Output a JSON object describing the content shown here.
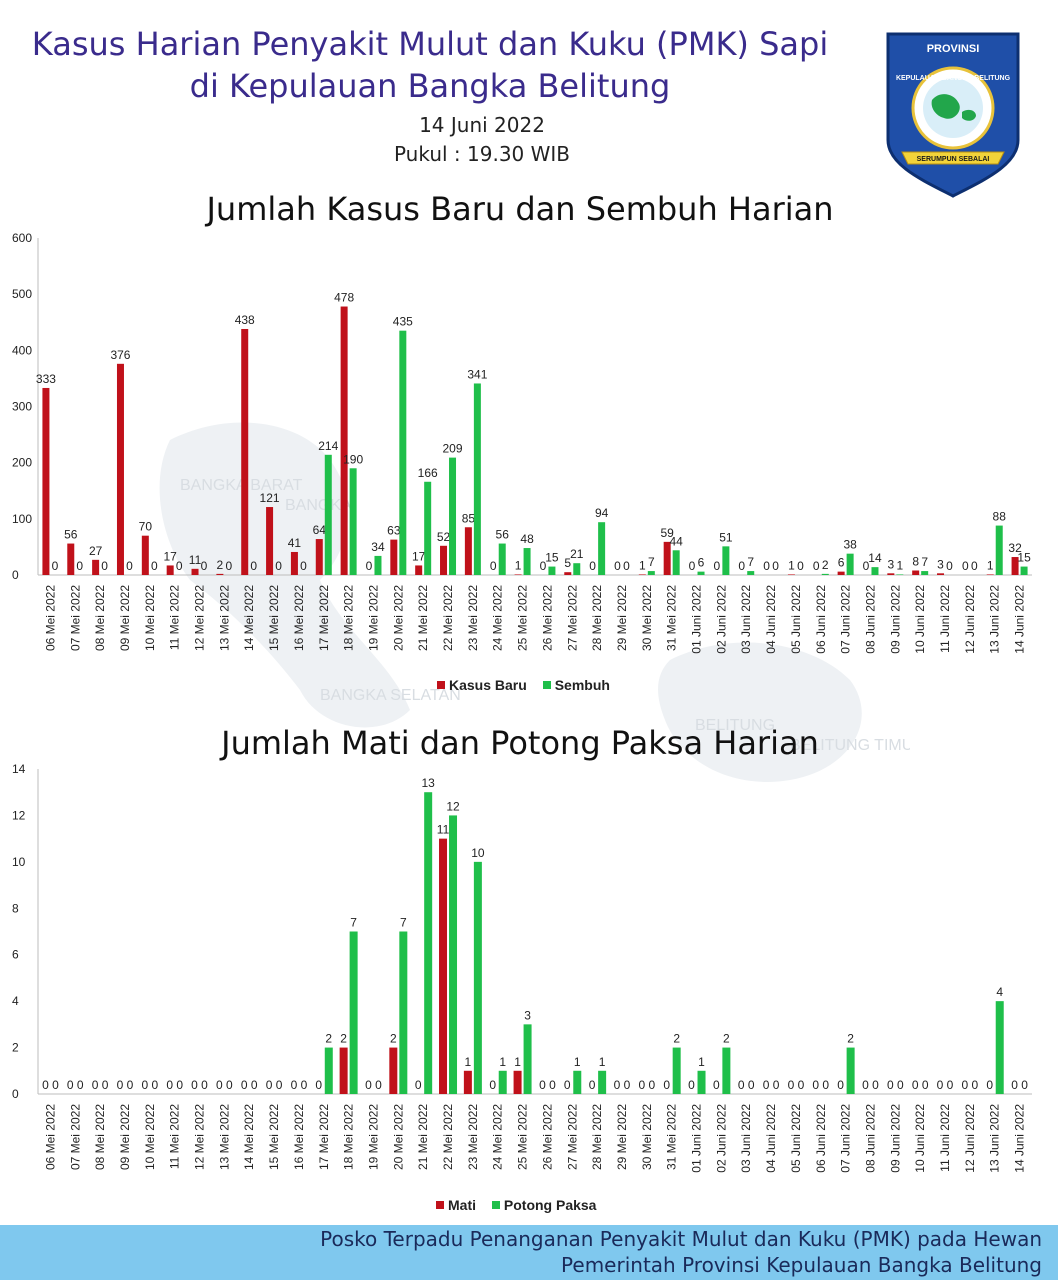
{
  "header": {
    "title_line1": "Kasus Harian Penyakit Mulut dan Kuku (PMK) Sapi",
    "title_line2": "di Kepulauan Bangka Belitung",
    "date": "14 Juni 2022",
    "time": "Pukul : 19.30 WIB"
  },
  "logo": {
    "top_text": "PROVINSI",
    "arc_text": "KEPULAUAN BANGKA BELITUNG",
    "ribbon_text": "SERUMPUN SEBALAI"
  },
  "background_map_labels": [
    "BANGKA BARAT",
    "BANGKA",
    "BANGKA SELATAN",
    "BELITUNG",
    "BELITUNG TIMUR"
  ],
  "chart_data": [
    {
      "type": "bar",
      "title": "Jumlah Kasus Baru dan Sembuh Harian",
      "xlabel": "",
      "ylabel": "",
      "ylim": [
        0,
        600
      ],
      "yticks": [
        0,
        100,
        200,
        300,
        400,
        500,
        600
      ],
      "legend_position": "bottom",
      "categories": [
        "06 Mei 2022",
        "07 Mei 2022",
        "08 Mei 2022",
        "09 Mei 2022",
        "10 Mei 2022",
        "11 Mei 2022",
        "12 Mei 2022",
        "13 Mei 2022",
        "14 Mei 2022",
        "15 Mei 2022",
        "16 Mei 2022",
        "17 Mei 2022",
        "18 Mei 2022",
        "19 Mei 2022",
        "20 Mei 2022",
        "21 Mei 2022",
        "22 Mei 2022",
        "23 Mei 2022",
        "24 Mei 2022",
        "25 Mei 2022",
        "26 Mei 2022",
        "27 Mei 2022",
        "28 Mei 2022",
        "29 Mei 2022",
        "30 Mei 2022",
        "31 Mei 2022",
        "01 Juni 2022",
        "02 Juni 2022",
        "03 Juni 2022",
        "04 Juni 2022",
        "05 Juni 2022",
        "06 Juni 2022",
        "07 Juni 2022",
        "08 Juni 2022",
        "09 Juni 2022",
        "10 Juni 2022",
        "11 Juni 2022",
        "12 Juni 2022",
        "13 Juni 2022",
        "14 Juni 2022"
      ],
      "series": [
        {
          "name": "Kasus Baru",
          "color": "#c0111a",
          "values": [
            333,
            56,
            27,
            376,
            70,
            17,
            11,
            2,
            438,
            121,
            41,
            64,
            478,
            0,
            63,
            17,
            52,
            85,
            0,
            1,
            0,
            5,
            0,
            0,
            1,
            59,
            0,
            0,
            0,
            0,
            1,
            0,
            6,
            0,
            3,
            8,
            3,
            0,
            1,
            32
          ]
        },
        {
          "name": "Sembuh",
          "color": "#1fbf4a",
          "values": [
            0,
            0,
            0,
            0,
            0,
            0,
            0,
            0,
            0,
            0,
            0,
            214,
            190,
            34,
            435,
            166,
            209,
            341,
            56,
            48,
            15,
            21,
            94,
            0,
            7,
            44,
            6,
            51,
            7,
            0,
            0,
            2,
            38,
            14,
            1,
            7,
            0,
            0,
            88,
            15
          ]
        }
      ]
    },
    {
      "type": "bar",
      "title": "Jumlah Mati dan Potong Paksa Harian",
      "xlabel": "",
      "ylabel": "",
      "ylim": [
        0,
        14
      ],
      "yticks": [
        0,
        2,
        4,
        6,
        8,
        10,
        12,
        14
      ],
      "legend_position": "bottom",
      "categories": [
        "06 Mei 2022",
        "07 Mei 2022",
        "08 Mei 2022",
        "09 Mei 2022",
        "10 Mei 2022",
        "11 Mei 2022",
        "12 Mei 2022",
        "13 Mei 2022",
        "14 Mei 2022",
        "15 Mei 2022",
        "16 Mei 2022",
        "17 Mei 2022",
        "18 Mei 2022",
        "19 Mei 2022",
        "20 Mei 2022",
        "21 Mei 2022",
        "22 Mei 2022",
        "23 Mei 2022",
        "24 Mei 2022",
        "25 Mei 2022",
        "26 Mei 2022",
        "27 Mei 2022",
        "28 Mei 2022",
        "29 Mei 2022",
        "30 Mei 2022",
        "31 Mei 2022",
        "01 Juni 2022",
        "02 Juni 2022",
        "03 Juni 2022",
        "04 Juni 2022",
        "05 Juni 2022",
        "06 Juni 2022",
        "07 Juni 2022",
        "08 Juni 2022",
        "09 Juni 2022",
        "10 Juni 2022",
        "11 Juni 2022",
        "12 Juni 2022",
        "13 Juni 2022",
        "14 Juni 2022"
      ],
      "series": [
        {
          "name": "Mati",
          "color": "#c0111a",
          "values": [
            0,
            0,
            0,
            0,
            0,
            0,
            0,
            0,
            0,
            0,
            0,
            0,
            2,
            0,
            2,
            0,
            11,
            1,
            0,
            1,
            0,
            0,
            0,
            0,
            0,
            0,
            0,
            0,
            0,
            0,
            0,
            0,
            0,
            0,
            0,
            0,
            0,
            0,
            0,
            0
          ]
        },
        {
          "name": "Potong Paksa",
          "color": "#1fbf4a",
          "values": [
            0,
            0,
            0,
            0,
            0,
            0,
            0,
            0,
            0,
            0,
            0,
            2,
            7,
            0,
            7,
            13,
            12,
            10,
            1,
            3,
            0,
            1,
            1,
            0,
            0,
            2,
            1,
            2,
            0,
            0,
            0,
            0,
            2,
            0,
            0,
            0,
            0,
            0,
            4,
            0
          ]
        }
      ]
    }
  ],
  "footer": {
    "line1": "Posko Terpadu Penanganan Penyakit Mulut dan Kuku (PMK) pada Hewan",
    "line2": "Pemerintah Provinsi Kepulauan Bangka Belitung"
  }
}
